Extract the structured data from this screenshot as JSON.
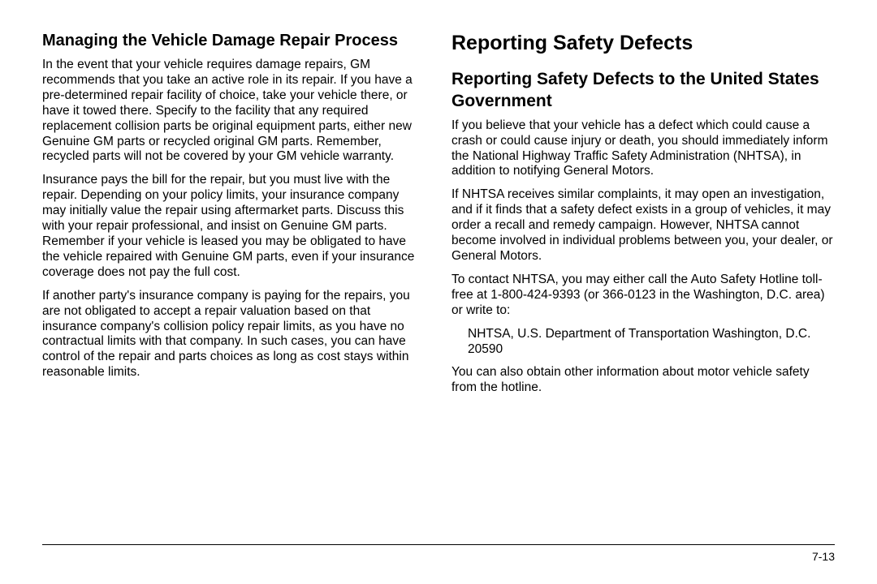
{
  "left": {
    "heading": "Managing the Vehicle Damage Repair Process",
    "p1": "In the event that your vehicle requires damage repairs, GM recommends that you take an active role in its repair. If you have a pre-determined repair facility of choice, take your vehicle there, or have it towed there. Specify to the facility that any required replacement collision parts be original equipment parts, either new Genuine GM parts or recycled original GM parts. Remember, recycled parts will not be covered by your GM vehicle warranty.",
    "p2": "Insurance pays the bill for the repair, but you must live with the repair. Depending on your policy limits, your insurance company may initially value the repair using aftermarket parts. Discuss this with your repair professional, and insist on Genuine GM parts. Remember if your vehicle is leased you may be obligated to have the vehicle repaired with Genuine GM parts, even if your insurance coverage does not pay the full cost.",
    "p3": "If another party's insurance company is paying for the repairs, you are not obligated to accept a repair valuation based on that insurance company's collision policy repair limits, as you have no contractual limits with that company. In such cases, you can have control of the repair and parts choices as long as cost stays within reasonable limits."
  },
  "right": {
    "title": "Reporting Safety Defects",
    "heading": "Reporting Safety Defects to the United States Government",
    "p1": "If you believe that your vehicle has a defect which could cause a crash or could cause injury or death, you should immediately inform the National Highway Traffic Safety Administration (NHTSA), in addition to notifying General Motors.",
    "p2": "If NHTSA receives similar complaints, it may open an investigation, and if it finds that a safety defect exists in a group of vehicles, it may order a recall and remedy campaign. However, NHTSA cannot become involved in individual problems between you, your dealer, or General Motors.",
    "p3": "To contact NHTSA, you may either call the Auto Safety Hotline toll-free at 1-800-424-9393 (or 366-0123 in the Washington, D.C. area) or write to:",
    "address": "NHTSA, U.S. Department of Transportation Washington, D.C. 20590",
    "p4": "You can also obtain other information about motor vehicle safety from the hotline."
  },
  "pageNumber": "7-13"
}
